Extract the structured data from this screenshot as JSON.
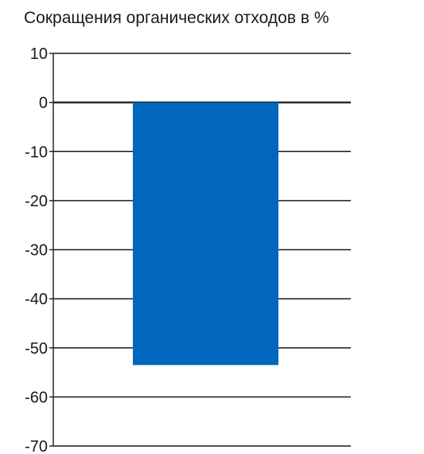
{
  "chart_data": {
    "type": "bar",
    "title": "Сокращения органических отходов в %",
    "categories": [
      ""
    ],
    "values": [
      -53.5
    ],
    "ylim": [
      -70,
      10
    ],
    "yticks": [
      10,
      0,
      -10,
      -20,
      -30,
      -40,
      -50,
      -60,
      -70
    ],
    "xlabel": "",
    "ylabel": "",
    "grid": true,
    "legend": "none",
    "colors": {
      "bar": "#0167bd",
      "grid": "#1a1a1a",
      "text": "#1a1a1a"
    }
  }
}
